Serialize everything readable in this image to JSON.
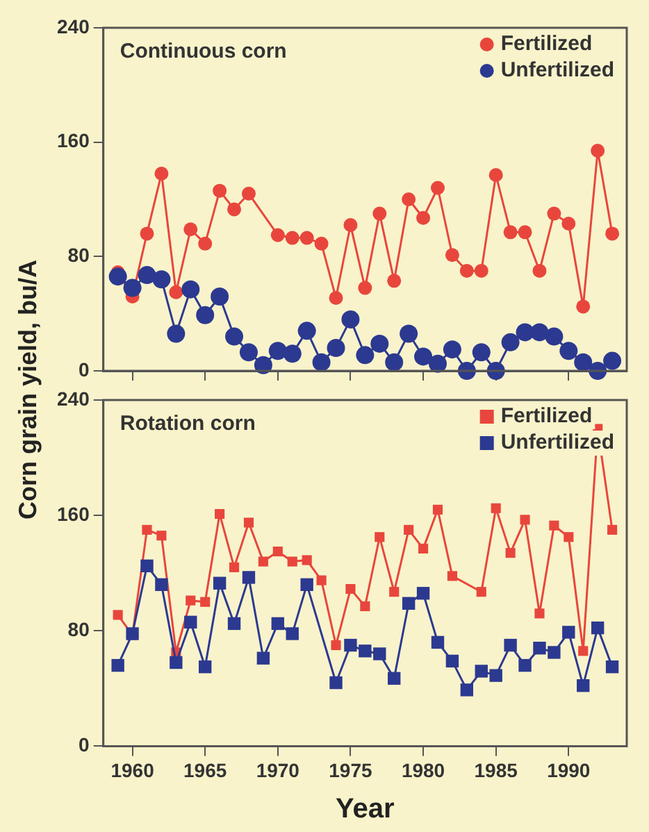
{
  "chart_data": [
    {
      "type": "line",
      "title": "Continuous corn",
      "ylabel": "Corn grain yield, bu/A",
      "x": [
        1959,
        1960,
        1961,
        1962,
        1963,
        1964,
        1965,
        1966,
        1967,
        1968,
        1969,
        1970,
        1971,
        1972,
        1973,
        1974,
        1975,
        1976,
        1977,
        1978,
        1979,
        1980,
        1981,
        1982,
        1983,
        1984,
        1985,
        1986,
        1987,
        1988,
        1989,
        1990,
        1991,
        1992,
        1993
      ],
      "series": [
        {
          "name": "Fertilized",
          "color": "#e8463c",
          "values": [
            69,
            52,
            96,
            138,
            55,
            99,
            89,
            126,
            113,
            124,
            null,
            95,
            93,
            93,
            89,
            51,
            102,
            58,
            110,
            63,
            120,
            107,
            128,
            81,
            70,
            70,
            137,
            97,
            97,
            70,
            110,
            103,
            45,
            154,
            96
          ]
        },
        {
          "name": "Unfertilized",
          "color": "#2c3990",
          "values": [
            66,
            58,
            67,
            64,
            26,
            57,
            39,
            52,
            24,
            13,
            4,
            14,
            12,
            28,
            6,
            16,
            36,
            11,
            19,
            6,
            26,
            10,
            5,
            15,
            0,
            13,
            0,
            20,
            27,
            27,
            24,
            14,
            6,
            0,
            7
          ]
        }
      ],
      "xlim": [
        1958,
        1994
      ],
      "xticks": [
        1960,
        1965,
        1970,
        1975,
        1980,
        1985,
        1990
      ],
      "ylim": [
        0,
        240
      ],
      "yticks": [
        0,
        80,
        160,
        240
      ],
      "tick_labels": "y",
      "grid": false,
      "legend": "top right",
      "marker": "circle",
      "line_style": "solid"
    },
    {
      "type": "line",
      "title": "Rotation corn",
      "xlabel": "Year",
      "x": [
        1959,
        1960,
        1961,
        1962,
        1963,
        1964,
        1965,
        1966,
        1967,
        1968,
        1969,
        1970,
        1971,
        1972,
        1973,
        1974,
        1975,
        1976,
        1977,
        1978,
        1979,
        1980,
        1981,
        1982,
        1983,
        1984,
        1985,
        1986,
        1987,
        1988,
        1989,
        1990,
        1991,
        1992,
        1993
      ],
      "series": [
        {
          "name": "Fertilized",
          "color": "#e8463c",
          "values": [
            91,
            77,
            150,
            146,
            65,
            101,
            100,
            161,
            124,
            155,
            128,
            135,
            128,
            129,
            115,
            70,
            109,
            97,
            145,
            107,
            150,
            137,
            164,
            118,
            null,
            107,
            165,
            134,
            157,
            92,
            153,
            145,
            66,
            220,
            150
          ]
        },
        {
          "name": "Unfertilized",
          "color": "#2c3990",
          "values": [
            56,
            78,
            125,
            112,
            58,
            86,
            55,
            113,
            85,
            117,
            61,
            85,
            78,
            112,
            null,
            44,
            70,
            66,
            64,
            47,
            99,
            106,
            72,
            59,
            39,
            52,
            49,
            70,
            56,
            68,
            65,
            79,
            42,
            82,
            55
          ]
        }
      ],
      "xlim": [
        1958,
        1994
      ],
      "xticks": [
        1960,
        1965,
        1970,
        1975,
        1980,
        1985,
        1990
      ],
      "ylim": [
        0,
        240
      ],
      "yticks": [
        0,
        80,
        160,
        240
      ],
      "grid": false,
      "legend": "top right",
      "marker": "square",
      "line_style": "solid"
    }
  ]
}
